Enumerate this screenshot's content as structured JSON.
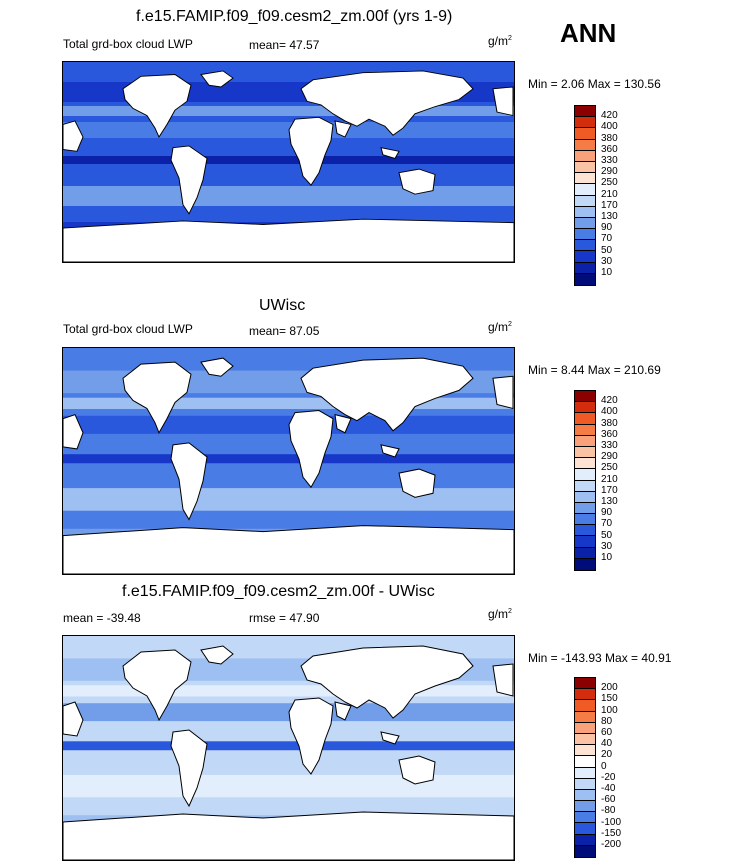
{
  "season": "ANN",
  "panels": [
    {
      "title": "f.e15.FAMIP.f09_f09.cesm2_zm.00f (yrs 1-9)",
      "left_label": "Total grd-box cloud LWP",
      "mean_label": "mean=  47.57",
      "units_base": "g/m",
      "units_exp": "2",
      "minmax": "Min =   2.06 Max = 130.56",
      "colorbar": {
        "labels": [
          "420",
          "400",
          "380",
          "360",
          "330",
          "290",
          "250",
          "210",
          "170",
          "130",
          "90",
          "70",
          "50",
          "30",
          "10"
        ],
        "colors": [
          "#8b0000",
          "#d42d0e",
          "#f05a25",
          "#f67c45",
          "#f9a17a",
          "#fbc3a6",
          "#fde3d3",
          "#e3eefc",
          "#c2d8f7",
          "#9ebff1",
          "#729ee9",
          "#4a7ce5",
          "#2a58dc",
          "#1637c7",
          "#0a21a8",
          "#000c7a"
        ]
      },
      "field_colors": [
        "#2a58dc",
        "#1637c7",
        "#4a7ce5",
        "#729ee9",
        "#0a21a8"
      ]
    },
    {
      "title": "UWisc",
      "left_label": "Total grd-box cloud LWP",
      "mean_label": "mean=  87.05",
      "units_base": "g/m",
      "units_exp": "2",
      "minmax": "Min =   8.44 Max = 210.69",
      "colorbar": {
        "labels": [
          "420",
          "400",
          "380",
          "360",
          "330",
          "290",
          "250",
          "210",
          "170",
          "130",
          "90",
          "70",
          "50",
          "30",
          "10"
        ],
        "colors": [
          "#8b0000",
          "#d42d0e",
          "#f05a25",
          "#f67c45",
          "#f9a17a",
          "#fbc3a6",
          "#fde3d3",
          "#e3eefc",
          "#c2d8f7",
          "#9ebff1",
          "#729ee9",
          "#4a7ce5",
          "#2a58dc",
          "#1637c7",
          "#0a21a8",
          "#000c7a"
        ]
      },
      "field_colors": [
        "#4a7ce5",
        "#729ee9",
        "#2a58dc",
        "#9ebff1",
        "#1637c7"
      ]
    },
    {
      "title": "f.e15.FAMIP.f09_f09.cesm2_zm.00f - UWisc",
      "left_label": "mean = -39.48",
      "mean_label": "rmse =  47.90",
      "units_base": "g/m",
      "units_exp": "2",
      "minmax": "Min = -143.93 Max =  40.91",
      "colorbar": {
        "labels": [
          "200",
          "150",
          "100",
          "80",
          "60",
          "40",
          "20",
          "0",
          "-20",
          "-40",
          "-60",
          "-80",
          "-100",
          "-150",
          "-200"
        ],
        "colors": [
          "#8b0000",
          "#d42d0e",
          "#f05a25",
          "#f67c45",
          "#f9a17a",
          "#fbc3a6",
          "#fde3d3",
          "#ffffff",
          "#e3eefc",
          "#c2d8f7",
          "#9ebff1",
          "#729ee9",
          "#4a7ce5",
          "#2a58dc",
          "#0a21a8",
          "#000c7a"
        ]
      },
      "field_colors": [
        "#c2d8f7",
        "#9ebff1",
        "#729ee9",
        "#e3eefc",
        "#2a58dc"
      ]
    }
  ]
}
